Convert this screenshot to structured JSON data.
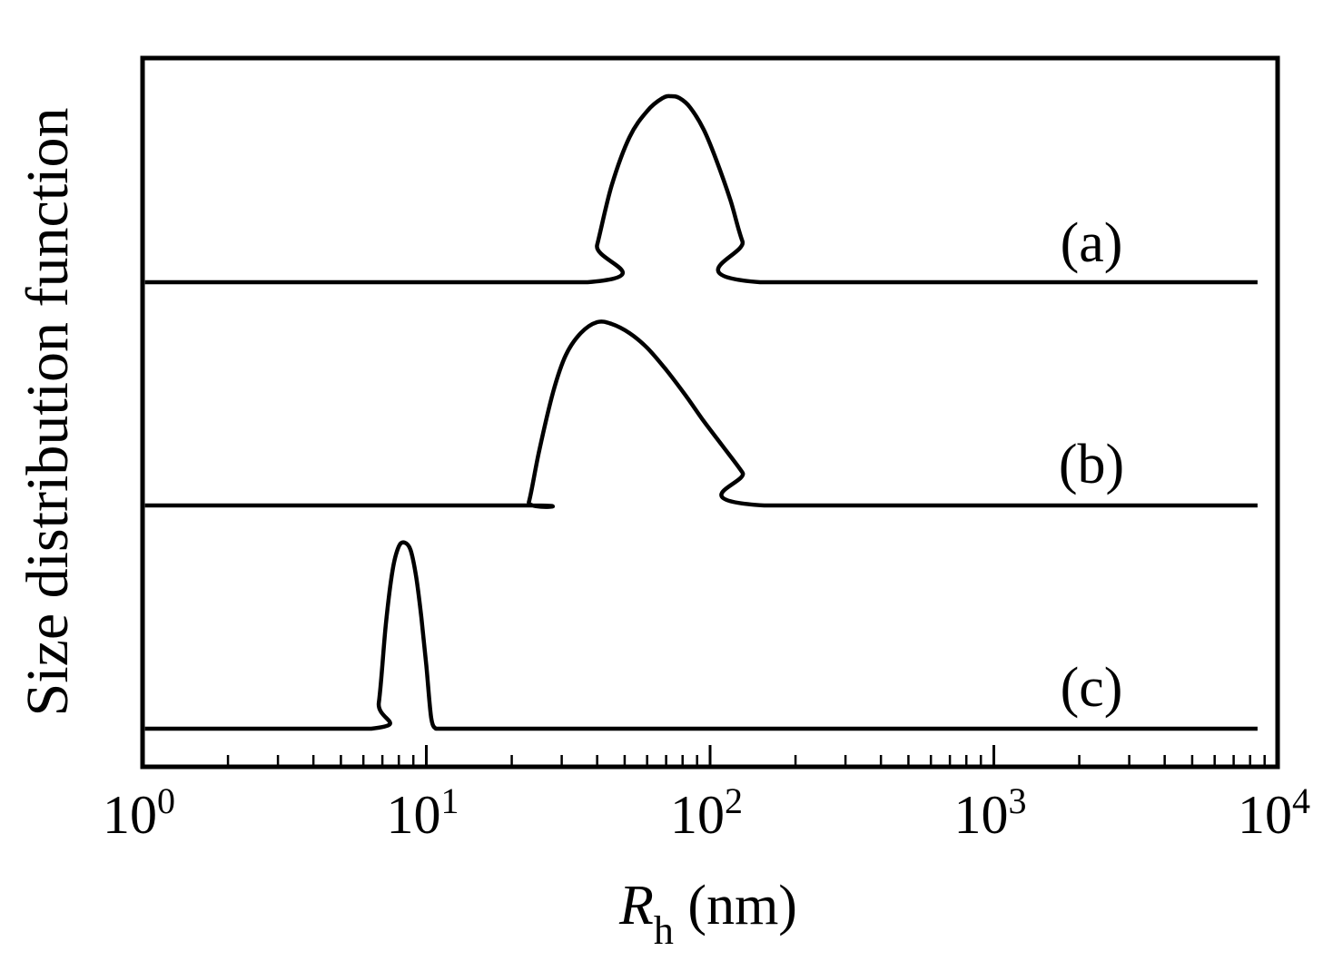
{
  "chart_data": {
    "type": "line",
    "title": "",
    "xlabel": {
      "symbol": "R",
      "subscript": "h",
      "unit": " (nm)"
    },
    "ylabel": "Size distribution function",
    "x_scale": "log",
    "xlim": [
      1,
      10000
    ],
    "x_ticks": [
      {
        "value": 1,
        "base": "10",
        "exp": "0"
      },
      {
        "value": 10,
        "base": "10",
        "exp": "1"
      },
      {
        "value": 100,
        "base": "10",
        "exp": "2"
      },
      {
        "value": 1000,
        "base": "10",
        "exp": "3"
      },
      {
        "value": 10000,
        "base": "10",
        "exp": "4"
      }
    ],
    "grid": false,
    "legend": "none",
    "line_color": "#000000",
    "series": [
      {
        "label": "(a)",
        "x": [
          1.02,
          37,
          40,
          45,
          52,
          60,
          68,
          73,
          78,
          85,
          95,
          105,
          118,
          130,
          150,
          8500
        ],
        "y": [
          0,
          0,
          0.2,
          0.52,
          0.78,
          0.92,
          0.99,
          1.0,
          0.99,
          0.94,
          0.82,
          0.66,
          0.44,
          0.22,
          0,
          0
        ]
      },
      {
        "label": "(b)",
        "x": [
          1.02,
          22,
          23,
          25,
          28,
          31,
          35,
          40,
          45,
          52,
          60,
          70,
          82,
          95,
          110,
          130,
          155,
          8500
        ],
        "y": [
          0,
          0,
          0.02,
          0.3,
          0.62,
          0.82,
          0.94,
          1.0,
          0.99,
          0.94,
          0.86,
          0.74,
          0.6,
          0.46,
          0.33,
          0.18,
          0,
          0
        ]
      },
      {
        "label": "(c)",
        "x": [
          1.02,
          6.4,
          6.8,
          7.2,
          7.6,
          8.0,
          8.4,
          8.8,
          9.2,
          9.6,
          10.0,
          10.4,
          10.8,
          11.2,
          8500
        ],
        "y": [
          0,
          0,
          0.14,
          0.56,
          0.85,
          0.98,
          1.0,
          0.96,
          0.82,
          0.6,
          0.34,
          0.06,
          0,
          0,
          0
        ]
      }
    ]
  }
}
